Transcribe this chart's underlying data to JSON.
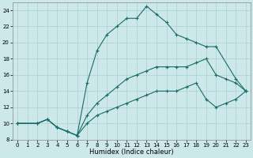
{
  "xlabel": "Humidex (Indice chaleur)",
  "bg_color": "#cce8e8",
  "grid_color": "#aacfcf",
  "line_color": "#1a6b6b",
  "xlim": [
    -0.5,
    23.5
  ],
  "ylim": [
    8,
    25
  ],
  "xticks": [
    0,
    1,
    2,
    3,
    4,
    5,
    6,
    7,
    8,
    9,
    10,
    11,
    12,
    13,
    14,
    15,
    16,
    17,
    18,
    19,
    20,
    21,
    22,
    23
  ],
  "yticks": [
    8,
    10,
    12,
    14,
    16,
    18,
    20,
    22,
    24
  ],
  "line1_x": [
    0,
    2,
    3,
    4,
    5,
    6,
    7,
    8,
    9,
    10,
    11,
    12,
    13,
    14,
    15,
    16,
    17,
    18,
    19,
    20,
    22,
    23
  ],
  "line1_y": [
    10,
    10,
    10.5,
    9.5,
    9,
    8.5,
    15,
    19,
    21,
    22,
    23,
    23,
    24.5,
    23.5,
    22.5,
    21,
    20.5,
    20,
    19.5,
    19.5,
    15.5,
    14
  ],
  "line2_x": [
    0,
    2,
    3,
    4,
    5,
    6,
    7,
    8,
    9,
    10,
    11,
    12,
    13,
    14,
    15,
    16,
    17,
    18,
    19,
    20,
    21,
    22,
    23
  ],
  "line2_y": [
    10,
    10,
    10.5,
    9.5,
    9,
    8.5,
    11,
    12.5,
    13.5,
    14.5,
    15.5,
    16,
    16.5,
    17,
    17,
    17,
    17,
    17.5,
    18,
    16,
    15.5,
    15,
    14
  ],
  "line3_x": [
    0,
    2,
    3,
    4,
    5,
    6,
    7,
    8,
    9,
    10,
    11,
    12,
    13,
    14,
    15,
    16,
    17,
    18,
    19,
    20,
    21,
    22,
    23
  ],
  "line3_y": [
    10,
    10,
    10.5,
    9.5,
    9,
    8.5,
    10,
    11,
    11.5,
    12,
    12.5,
    13,
    13.5,
    14,
    14,
    14,
    14.5,
    15,
    13,
    12,
    12.5,
    13,
    14
  ]
}
